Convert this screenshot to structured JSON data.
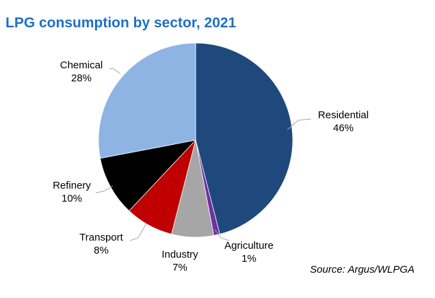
{
  "title": "LPG consumption by sector, 2021",
  "source": "Source: Argus/WLPGA",
  "chart_data": {
    "type": "pie",
    "title": "LPG consumption by sector, 2021",
    "start_angle": "12 o'clock",
    "direction": "clockwise",
    "legend": "none (data labels on slices)",
    "slices": [
      {
        "label": "Residential",
        "value": 46,
        "value_label": "46%",
        "color": "#1f497d"
      },
      {
        "label": "Agriculture",
        "value": 1,
        "value_label": "1%",
        "color": "#7030a0"
      },
      {
        "label": "Industry",
        "value": 7,
        "value_label": "7%",
        "color": "#a6a6a6"
      },
      {
        "label": "Transport",
        "value": 8,
        "value_label": "8%",
        "color": "#c00000"
      },
      {
        "label": "Refinery",
        "value": 10,
        "value_label": "10%",
        "color": "#000000"
      },
      {
        "label": "Chemical",
        "value": 28,
        "value_label": "28%",
        "color": "#8eb4e3"
      }
    ]
  }
}
